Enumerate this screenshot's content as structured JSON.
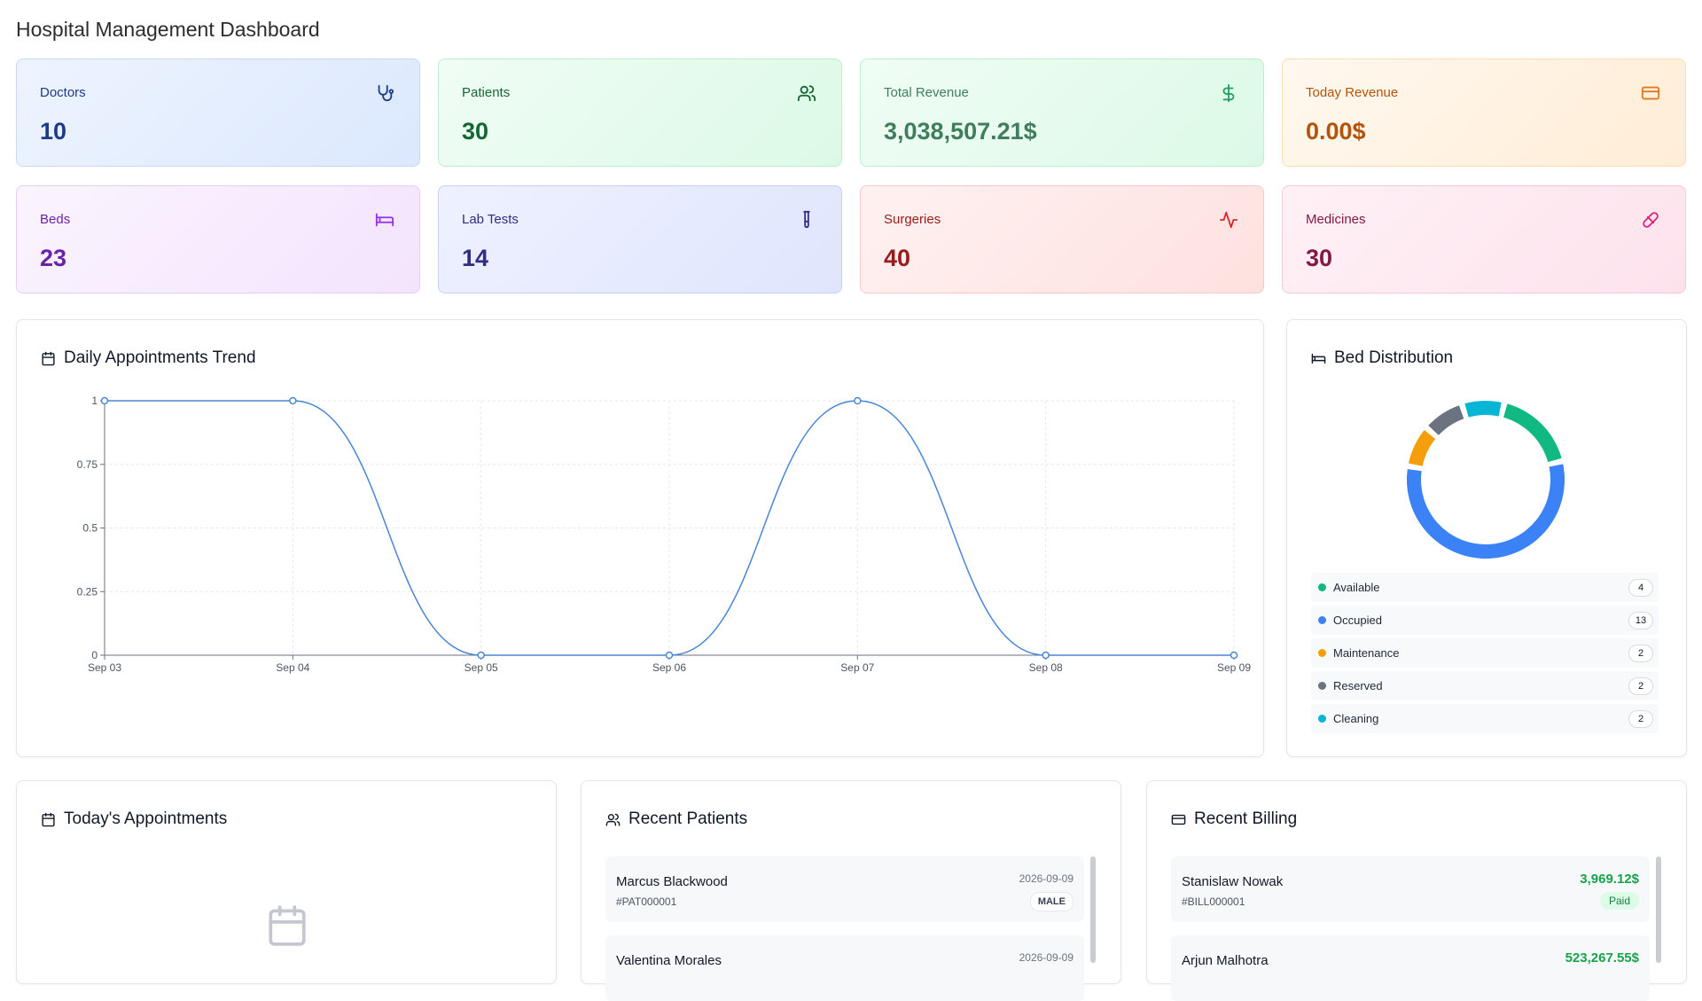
{
  "page_title": "Hospital Management Dashboard",
  "stats": [
    {
      "label": "Doctors",
      "value": "10",
      "icon": "stethoscope-icon"
    },
    {
      "label": "Patients",
      "value": "30",
      "icon": "users-icon"
    },
    {
      "label": "Total Revenue",
      "value": "3,038,507.21$",
      "icon": "dollar-icon"
    },
    {
      "label": "Today Revenue",
      "value": "0.00$",
      "icon": "credit-card-icon"
    },
    {
      "label": "Beds",
      "value": "23",
      "icon": "bed-icon"
    },
    {
      "label": "Lab Tests",
      "value": "14",
      "icon": "test-tube-icon"
    },
    {
      "label": "Surgeries",
      "value": "40",
      "icon": "activity-icon"
    },
    {
      "label": "Medicines",
      "value": "30",
      "icon": "pill-icon"
    }
  ],
  "appointments_trend": {
    "title": "Daily Appointments Trend",
    "chart_data": {
      "type": "line",
      "categories": [
        "Sep 03",
        "Sep 04",
        "Sep 05",
        "Sep 06",
        "Sep 07",
        "Sep 08",
        "Sep 09"
      ],
      "values": [
        1,
        1,
        0,
        0,
        1,
        0,
        0
      ],
      "y_ticks": [
        "0",
        "0.25",
        "0.5",
        "0.75",
        "1"
      ],
      "ylim": [
        0,
        1
      ],
      "grid": true,
      "line_color": "#4a86d4"
    }
  },
  "bed_distribution": {
    "title": "Bed Distribution",
    "chart_data": {
      "type": "pie",
      "categories": [
        "Available",
        "Occupied",
        "Maintenance",
        "Reserved",
        "Cleaning"
      ],
      "values": [
        4,
        13,
        2,
        2,
        2
      ],
      "colors": [
        "#10b981",
        "#3b82f6",
        "#f59e0b",
        "#6b7280",
        "#06b6d4"
      ]
    },
    "legend": [
      {
        "label": "Available",
        "count": "4",
        "color": "#10b981"
      },
      {
        "label": "Occupied",
        "count": "13",
        "color": "#3b82f6"
      },
      {
        "label": "Maintenance",
        "count": "2",
        "color": "#f59e0b"
      },
      {
        "label": "Reserved",
        "count": "2",
        "color": "#6b7280"
      },
      {
        "label": "Cleaning",
        "count": "2",
        "color": "#06b6d4"
      }
    ]
  },
  "todays_appointments": {
    "title": "Today's Appointments",
    "icon": "calendar-icon"
  },
  "recent_patients": {
    "title": "Recent Patients",
    "items": [
      {
        "name": "Marcus Blackwood",
        "id": "#PAT000001",
        "date": "2026-09-09",
        "gender": "MALE"
      },
      {
        "name": "Valentina Morales",
        "id": "",
        "date": "2026-09-09",
        "gender": ""
      }
    ]
  },
  "recent_billing": {
    "title": "Recent Billing",
    "items": [
      {
        "name": "Stanislaw Nowak",
        "id": "#BILL000001",
        "amount": "3,969.12$",
        "status": "Paid"
      },
      {
        "name": "Arjun Malhotra",
        "id": "",
        "amount": "523,267.55$",
        "status": ""
      }
    ]
  }
}
